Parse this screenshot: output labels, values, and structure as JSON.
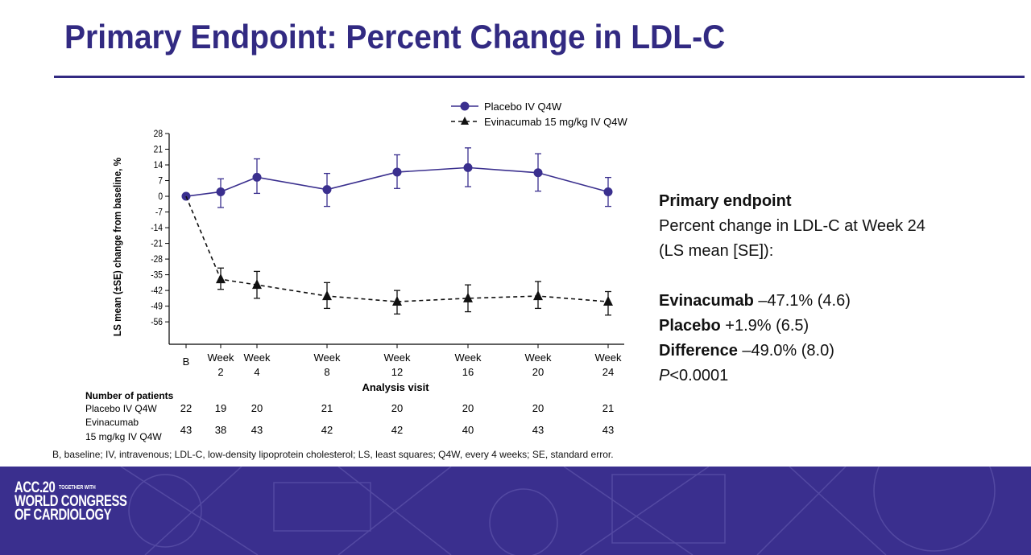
{
  "slide": {
    "title": "Primary Endpoint: Percent Change in LDL-C",
    "footnote": "B, baseline; IV, intravenous; LDL-C, low-density lipoprotein cholesterol; LS, least squares; Q4W, every 4 weeks; SE, standard error."
  },
  "chart_data": {
    "type": "line",
    "ylabel": "LS mean (±SE) change from baseline, %",
    "xlabel": "Analysis visit",
    "ylim": [
      -66,
      28
    ],
    "yticks": [
      28,
      21,
      14,
      7,
      0,
      -7,
      -14,
      -21,
      -28,
      -35,
      -42,
      -49,
      -56
    ],
    "x": [
      0,
      2,
      4,
      8,
      12,
      16,
      20,
      24
    ],
    "categories": [
      [
        "B"
      ],
      [
        "Week",
        "2"
      ],
      [
        "Week",
        "4"
      ],
      [
        "Week",
        "8"
      ],
      [
        "Week",
        "12"
      ],
      [
        "Week",
        "16"
      ],
      [
        "Week",
        "20"
      ],
      [
        "Week",
        "24"
      ]
    ],
    "legend_position": "top",
    "series": [
      {
        "name": "Placebo IV Q4W",
        "color": "#3a2f8e",
        "line_style": "solid",
        "marker": "circle",
        "values": [
          0,
          2,
          8.5,
          3,
          10.8,
          12.8,
          10.5,
          2
        ],
        "se_low": [
          null,
          -5,
          1.3,
          -4.5,
          3.5,
          4.3,
          2.3,
          -4.5
        ],
        "se_high": [
          null,
          7.8,
          16.7,
          10.2,
          18.5,
          21.6,
          19,
          8.4
        ],
        "patients": [
          "22",
          "19",
          "20",
          "21",
          "20",
          "20",
          "20",
          "21"
        ]
      },
      {
        "name": "Evinacumab 15 mg/kg IV Q4W",
        "patients_label": [
          "Evinacumab",
          "15 mg/kg IV Q4W"
        ],
        "color": "#111111",
        "line_style": "dashed",
        "marker": "triangle",
        "values": [
          0,
          -37,
          -39.5,
          -44.5,
          -47,
          -45.5,
          -44.5,
          -47
        ],
        "se_low": [
          null,
          -41.5,
          -45.5,
          -50,
          -52.5,
          -51.5,
          -50,
          -53
        ],
        "se_high": [
          null,
          -32,
          -33.5,
          -38.5,
          -42,
          -39.5,
          -38,
          -42.5
        ],
        "patients": [
          "43",
          "38",
          "43",
          "42",
          "42",
          "40",
          "43",
          "43"
        ]
      }
    ],
    "patients_header": "Number of patients",
    "patients_row1_label": "Placebo IV Q4W"
  },
  "side_panel": {
    "heading": "Primary endpoint",
    "line1": "Percent change in LDL-C at Week 24",
    "line2": "(LS mean [SE]):",
    "results": [
      {
        "label": "Evinacumab",
        "value": " –47.1% (4.6)"
      },
      {
        "label": "Placebo",
        "value": " +1.9% (6.5)"
      },
      {
        "label": "Difference",
        "value": " –49.0% (8.0)"
      }
    ],
    "p_italic": "P",
    "p_rest": "<0.0001"
  },
  "banner": {
    "logo_line1": "ACC.20",
    "logo_tag": "TOGETHER WITH",
    "logo_line2": "WORLD CONGRESS",
    "logo_line3": "OF CARDIOLOGY",
    "color": "#3a2f8e"
  }
}
